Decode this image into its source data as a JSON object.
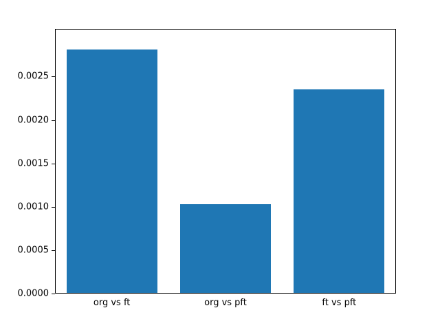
{
  "chart_data": {
    "type": "bar",
    "categories": [
      "org vs ft",
      "org vs pft",
      "ft vs pft"
    ],
    "values": [
      0.00282,
      0.00103,
      0.00236
    ],
    "title": "",
    "xlabel": "",
    "ylabel": "",
    "ylim": [
      0,
      0.00305
    ],
    "y_ticks": [
      0.0,
      0.0005,
      0.001,
      0.0015,
      0.002,
      0.0025
    ],
    "y_tick_decimals": 4,
    "legend": null,
    "grid": false,
    "bar_color": "#1f77b4",
    "spine_color": "#000000",
    "background_color": "#ffffff"
  },
  "layout_labels": {
    "figure": "matplotlib-style bar chart figure"
  }
}
